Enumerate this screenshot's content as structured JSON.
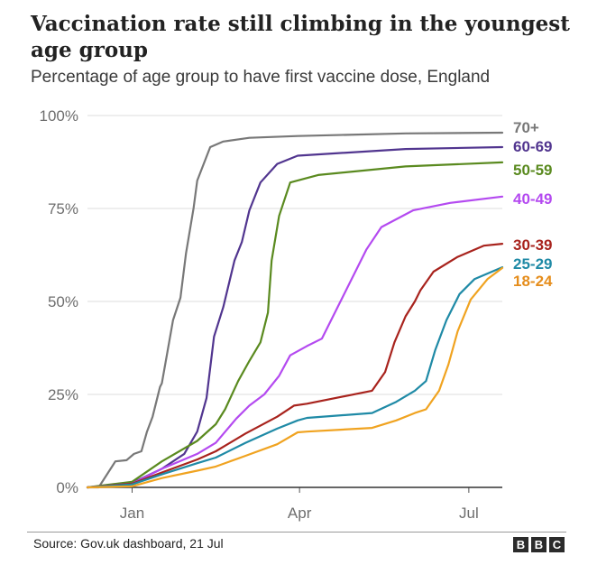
{
  "header": {
    "title": "Vaccination rate still climbing in the youngest age group",
    "subtitle": "Percentage of age group to have first vaccine dose, England"
  },
  "footer": {
    "source": "Source: Gov.uk dashboard, 21 Jul",
    "logo_letters": [
      "B",
      "B",
      "C"
    ]
  },
  "chart_data": {
    "type": "line",
    "title": "Vaccination rate still climbing in the youngest age group",
    "subtitle": "Percentage of age group to have first vaccine dose, England",
    "xlabel": "",
    "ylabel": "",
    "x_unit": "days since 1 Jan 2021",
    "xlim": [
      -24,
      199
    ],
    "ylim": [
      0,
      100
    ],
    "grid": "horizontal",
    "legend": "direct labels at right end of lines",
    "y_ticks": [
      {
        "value": 0,
        "label": "0%"
      },
      {
        "value": 25,
        "label": "25%"
      },
      {
        "value": 50,
        "label": "50%"
      },
      {
        "value": 75,
        "label": "75%"
      },
      {
        "value": 100,
        "label": "100%"
      }
    ],
    "x_ticks": [
      {
        "value": 0,
        "label": "Jan"
      },
      {
        "value": 90,
        "label": "Apr"
      },
      {
        "value": 181,
        "label": "Jul"
      }
    ],
    "series": [
      {
        "name": "70+",
        "color": "#787878",
        "points": [
          [
            -24,
            0
          ],
          [
            -18,
            0
          ],
          [
            -9,
            7
          ],
          [
            -3,
            7.3
          ],
          [
            1,
            9
          ],
          [
            5,
            9.7
          ],
          [
            8,
            15
          ],
          [
            11,
            19
          ],
          [
            15,
            27
          ],
          [
            16,
            28
          ],
          [
            22,
            45
          ],
          [
            26,
            51
          ],
          [
            29,
            63
          ],
          [
            33,
            75
          ],
          [
            35,
            82.5
          ],
          [
            42,
            91.5
          ],
          [
            49,
            93
          ],
          [
            63,
            94
          ],
          [
            89,
            94.5
          ],
          [
            147,
            95.2
          ],
          [
            199,
            95.4
          ]
        ]
      },
      {
        "name": "60-69",
        "color": "#51358f",
        "points": [
          [
            -24,
            0
          ],
          [
            -13,
            0.5
          ],
          [
            0,
            1.2
          ],
          [
            16,
            5
          ],
          [
            28,
            9
          ],
          [
            35,
            15
          ],
          [
            40,
            24
          ],
          [
            44,
            40.5
          ],
          [
            49,
            48.5
          ],
          [
            55,
            61
          ],
          [
            59,
            66
          ],
          [
            63,
            74.5
          ],
          [
            69,
            82
          ],
          [
            78,
            87
          ],
          [
            89,
            89.2
          ],
          [
            147,
            91
          ],
          [
            199,
            91.5
          ]
        ]
      },
      {
        "name": "50-59",
        "color": "#5a8a1f",
        "points": [
          [
            -24,
            0
          ],
          [
            -13,
            0.7
          ],
          [
            0,
            1.5
          ],
          [
            16,
            7
          ],
          [
            35,
            12.5
          ],
          [
            45,
            17
          ],
          [
            50,
            21
          ],
          [
            57,
            28.6
          ],
          [
            63,
            34
          ],
          [
            69,
            39
          ],
          [
            73,
            47
          ],
          [
            75,
            61
          ],
          [
            79,
            73
          ],
          [
            85,
            82
          ],
          [
            100,
            84
          ],
          [
            147,
            86.3
          ],
          [
            199,
            87.4
          ]
        ]
      },
      {
        "name": "40-49",
        "color": "#b44af0",
        "points": [
          [
            -24,
            0
          ],
          [
            0,
            1
          ],
          [
            16,
            5
          ],
          [
            35,
            9
          ],
          [
            45,
            12
          ],
          [
            56,
            18.5
          ],
          [
            63,
            22
          ],
          [
            71,
            25
          ],
          [
            79,
            30
          ],
          [
            85,
            35.5
          ],
          [
            94,
            38
          ],
          [
            102,
            40
          ],
          [
            113,
            51
          ],
          [
            126,
            64
          ],
          [
            134,
            70
          ],
          [
            151,
            74.5
          ],
          [
            171,
            76.5
          ],
          [
            199,
            78.2
          ]
        ]
      },
      {
        "name": "30-39",
        "color": "#a8231d",
        "points": [
          [
            -24,
            0
          ],
          [
            0,
            1
          ],
          [
            16,
            4
          ],
          [
            35,
            7.5
          ],
          [
            45,
            9.7
          ],
          [
            61,
            14.5
          ],
          [
            78,
            19
          ],
          [
            87,
            22
          ],
          [
            94,
            22.5
          ],
          [
            129,
            26
          ],
          [
            136,
            31
          ],
          [
            141,
            39
          ],
          [
            147,
            46
          ],
          [
            152,
            50
          ],
          [
            155,
            53
          ],
          [
            162,
            58
          ],
          [
            175,
            62
          ],
          [
            189,
            65
          ],
          [
            199,
            65.5
          ]
        ]
      },
      {
        "name": "25-29",
        "color": "#1f8aa6",
        "points": [
          [
            -24,
            0
          ],
          [
            0,
            0.8
          ],
          [
            16,
            3.5
          ],
          [
            35,
            6.5
          ],
          [
            45,
            8
          ],
          [
            61,
            12
          ],
          [
            78,
            15.8
          ],
          [
            89,
            18
          ],
          [
            94,
            18.7
          ],
          [
            129,
            20
          ],
          [
            142,
            23
          ],
          [
            152,
            26
          ],
          [
            158,
            28.6
          ],
          [
            163,
            37
          ],
          [
            169,
            45
          ],
          [
            176,
            52
          ],
          [
            184,
            56
          ],
          [
            199,
            59.2
          ]
        ]
      },
      {
        "name": "18-24",
        "color": "#f0a320",
        "label_color": "#e58d1c",
        "points": [
          [
            -24,
            0
          ],
          [
            0,
            0.3
          ],
          [
            16,
            2.5
          ],
          [
            35,
            4.5
          ],
          [
            45,
            5.6
          ],
          [
            61,
            8.5
          ],
          [
            78,
            11.6
          ],
          [
            89,
            14.8
          ],
          [
            94,
            15
          ],
          [
            129,
            16
          ],
          [
            142,
            18
          ],
          [
            152,
            20
          ],
          [
            158,
            21
          ],
          [
            165,
            26
          ],
          [
            170,
            33
          ],
          [
            175,
            42
          ],
          [
            182,
            50.5
          ],
          [
            191,
            56
          ],
          [
            199,
            59
          ]
        ]
      }
    ],
    "labels": [
      {
        "series": "70+",
        "text": "70+"
      },
      {
        "series": "60-69",
        "text": "60-69"
      },
      {
        "series": "50-59",
        "text": "50-59"
      },
      {
        "series": "40-49",
        "text": "40-49"
      },
      {
        "series": "30-39",
        "text": "30-39"
      },
      {
        "series": "25-29",
        "text": "25-29"
      },
      {
        "series": "18-24",
        "text": "18-24"
      }
    ]
  }
}
